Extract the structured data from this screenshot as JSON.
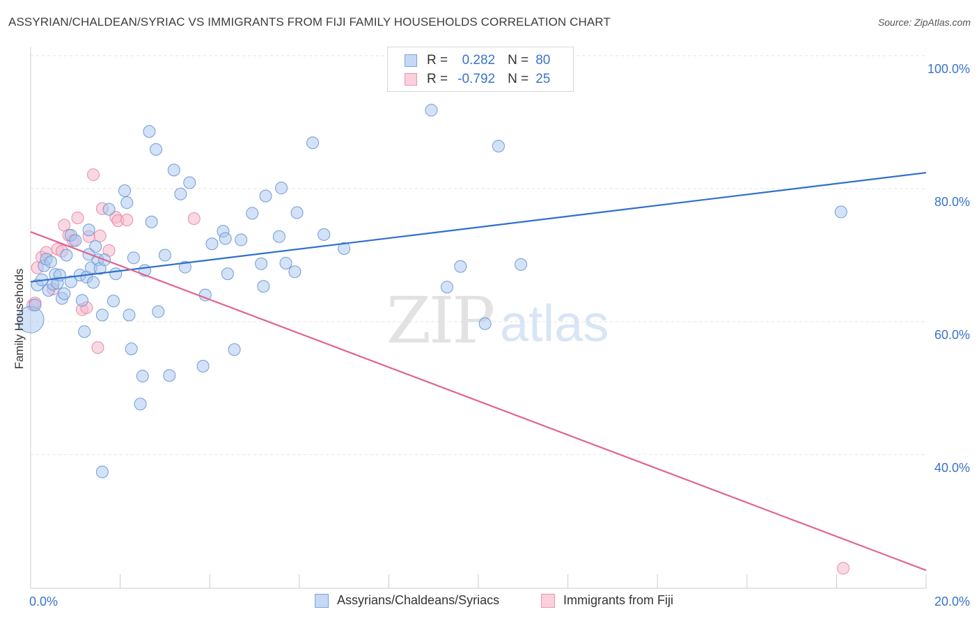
{
  "header": {
    "title": "ASSYRIAN/CHALDEAN/SYRIAC VS IMMIGRANTS FROM FIJI FAMILY HOUSEHOLDS CORRELATION CHART",
    "source": "Source: ZipAtlas.com"
  },
  "legend": {
    "rows": [
      {
        "r_label": "R =",
        "r_value": "0.282",
        "n_label": "N =",
        "n_value": "80",
        "color": "#a8c6ef"
      },
      {
        "r_label": "R =",
        "r_value": "-0.792",
        "n_label": "N =",
        "n_value": "25",
        "color": "#f5b8cb"
      }
    ]
  },
  "bottom_legend": {
    "series1": "Assyrians/Chaldeans/Syriacs",
    "series2": "Immigrants from Fiji"
  },
  "watermark": {
    "zip": "ZIP",
    "atlas": "atlas"
  },
  "chart_data": {
    "type": "scatter",
    "title": "ASSYRIAN/CHALDEAN/SYRIAC VS IMMIGRANTS FROM FIJI FAMILY HOUSEHOLDS CORRELATION CHART",
    "ylabel": "Family Households",
    "xlabel": "",
    "xlim": [
      0,
      20
    ],
    "ylim": [
      20,
      103
    ],
    "x_ticks": [
      {
        "value": 0,
        "label": "0.0%"
      },
      {
        "value": 20,
        "label": "20.0%"
      }
    ],
    "y_ticks": [
      {
        "value": 40,
        "label": "40.0%"
      },
      {
        "value": 60,
        "label": "60.0%"
      },
      {
        "value": 80,
        "label": "80.0%"
      },
      {
        "value": 100,
        "label": "100.0%"
      }
    ],
    "grid": true,
    "colors": {
      "series1_fill": "#a8c6ef",
      "series1_line": "#2f6fcc",
      "series2_fill": "#f5b8cb",
      "series2_line": "#e0648f",
      "tick": "#3a73c8"
    },
    "series": [
      {
        "name": "Assyrians/Chaldeans/Syriacs",
        "trend": {
          "x": [
            0,
            20
          ],
          "y": [
            66.0,
            82.4
          ]
        },
        "points": [
          [
            0.0,
            60.3
          ],
          [
            0.1,
            62.5
          ],
          [
            0.15,
            65.5
          ],
          [
            0.25,
            66.3
          ],
          [
            0.3,
            68.4
          ],
          [
            0.35,
            69.4
          ],
          [
            0.4,
            64.7
          ],
          [
            0.45,
            69.0
          ],
          [
            0.5,
            65.6
          ],
          [
            0.55,
            67.1
          ],
          [
            0.6,
            65.8
          ],
          [
            0.65,
            67.0
          ],
          [
            0.7,
            63.5
          ],
          [
            0.75,
            64.2
          ],
          [
            0.8,
            70.0
          ],
          [
            0.9,
            66.0
          ],
          [
            0.9,
            73.0
          ],
          [
            1.0,
            72.2
          ],
          [
            1.1,
            67.0
          ],
          [
            1.15,
            63.2
          ],
          [
            1.2,
            58.5
          ],
          [
            1.25,
            66.7
          ],
          [
            1.3,
            73.8
          ],
          [
            1.35,
            68.1
          ],
          [
            1.4,
            65.9
          ],
          [
            1.45,
            71.3
          ],
          [
            1.5,
            69.3
          ],
          [
            1.55,
            68.0
          ],
          [
            1.6,
            61.0
          ],
          [
            1.65,
            69.3
          ],
          [
            1.75,
            76.9
          ],
          [
            1.85,
            63.1
          ],
          [
            1.9,
            67.2
          ],
          [
            2.1,
            79.7
          ],
          [
            2.15,
            77.9
          ],
          [
            2.2,
            61.0
          ],
          [
            2.25,
            55.9
          ],
          [
            2.3,
            69.6
          ],
          [
            2.45,
            47.6
          ],
          [
            2.5,
            51.8
          ],
          [
            2.55,
            67.7
          ],
          [
            2.65,
            88.6
          ],
          [
            2.7,
            75.0
          ],
          [
            2.8,
            85.9
          ],
          [
            2.85,
            61.5
          ],
          [
            3.0,
            70.0
          ],
          [
            3.1,
            51.9
          ],
          [
            3.2,
            82.8
          ],
          [
            3.35,
            79.2
          ],
          [
            3.45,
            68.2
          ],
          [
            3.55,
            80.9
          ],
          [
            3.85,
            53.3
          ],
          [
            3.9,
            64.0
          ],
          [
            4.05,
            71.7
          ],
          [
            4.3,
            73.6
          ],
          [
            4.35,
            72.5
          ],
          [
            4.4,
            67.2
          ],
          [
            4.55,
            55.8
          ],
          [
            4.7,
            72.3
          ],
          [
            4.95,
            76.3
          ],
          [
            5.15,
            68.7
          ],
          [
            5.2,
            65.3
          ],
          [
            5.25,
            78.9
          ],
          [
            5.55,
            72.8
          ],
          [
            5.6,
            80.1
          ],
          [
            5.7,
            68.8
          ],
          [
            5.9,
            67.5
          ],
          [
            5.95,
            76.4
          ],
          [
            6.3,
            86.9
          ],
          [
            6.55,
            73.1
          ],
          [
            7.0,
            71.0
          ],
          [
            8.95,
            91.8
          ],
          [
            9.3,
            65.2
          ],
          [
            9.6,
            68.3
          ],
          [
            10.15,
            59.7
          ],
          [
            10.45,
            86.4
          ],
          [
            10.95,
            68.6
          ],
          [
            18.1,
            76.5
          ],
          [
            1.6,
            37.4
          ],
          [
            1.3,
            70.1
          ]
        ]
      },
      {
        "name": "Immigrants from Fiji",
        "trend": {
          "x": [
            0,
            20
          ],
          "y": [
            73.5,
            22.6
          ]
        },
        "points": [
          [
            0.05,
            62.5
          ],
          [
            0.1,
            62.8
          ],
          [
            0.15,
            68.1
          ],
          [
            0.25,
            69.7
          ],
          [
            0.35,
            70.4
          ],
          [
            0.5,
            64.9
          ],
          [
            0.6,
            70.9
          ],
          [
            0.7,
            70.6
          ],
          [
            0.75,
            74.5
          ],
          [
            0.85,
            73.0
          ],
          [
            0.95,
            72.2
          ],
          [
            1.05,
            75.6
          ],
          [
            1.15,
            61.8
          ],
          [
            1.25,
            62.1
          ],
          [
            1.3,
            72.8
          ],
          [
            1.4,
            82.1
          ],
          [
            1.5,
            56.1
          ],
          [
            1.55,
            72.9
          ],
          [
            1.6,
            77.0
          ],
          [
            1.75,
            70.7
          ],
          [
            1.9,
            75.7
          ],
          [
            1.95,
            75.2
          ],
          [
            2.15,
            75.3
          ],
          [
            3.65,
            75.5
          ],
          [
            18.15,
            22.9
          ]
        ]
      }
    ]
  }
}
